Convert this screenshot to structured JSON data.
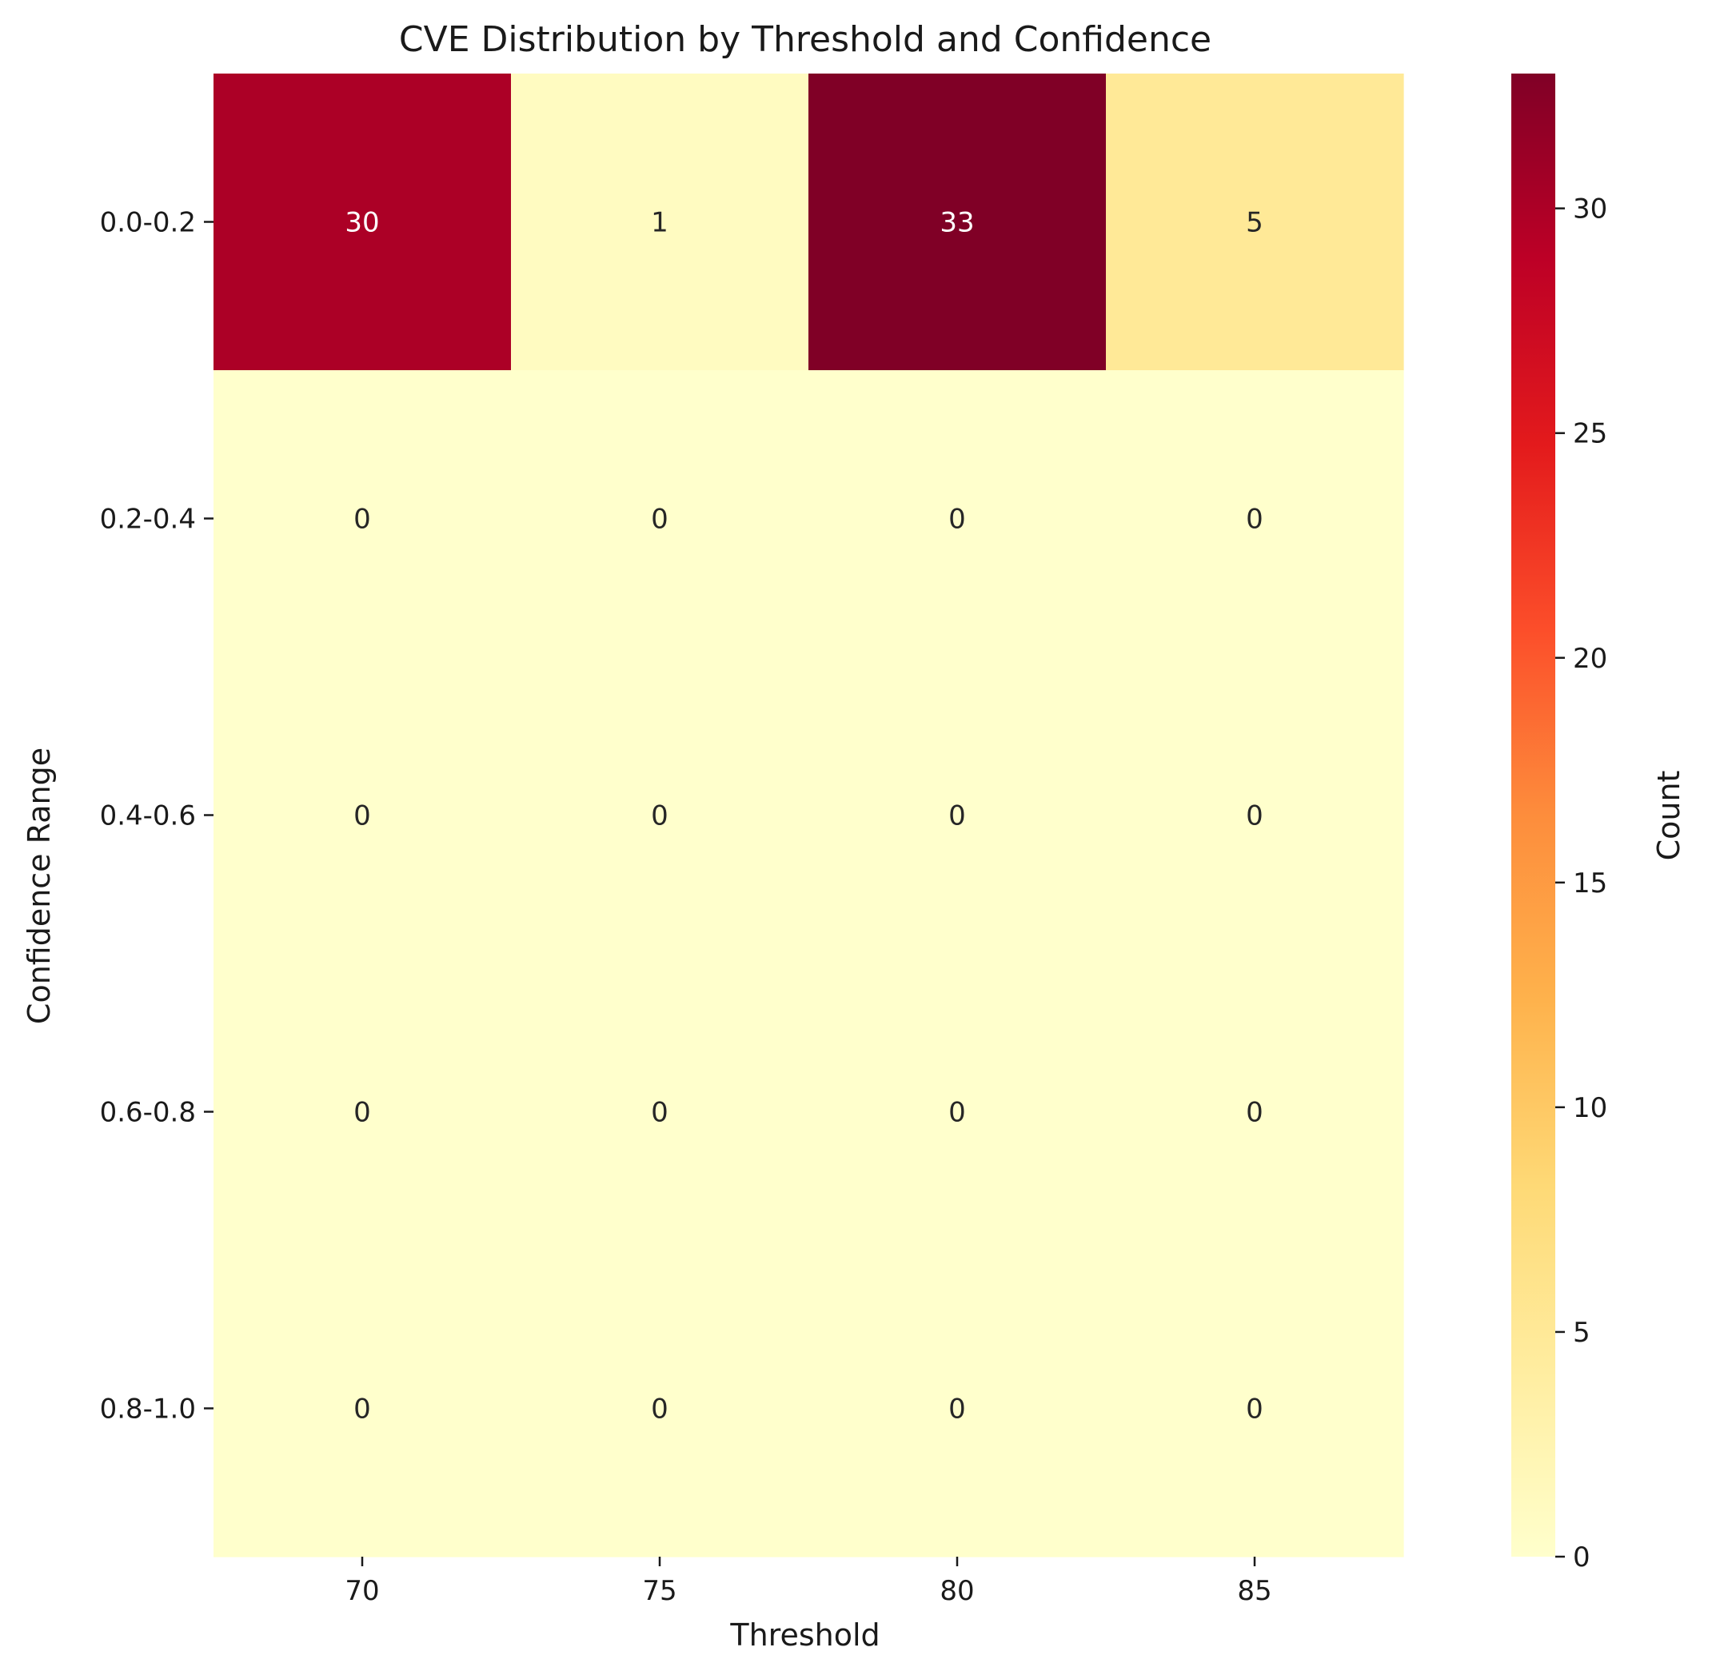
{
  "chart_data": {
    "type": "heatmap",
    "title": "CVE Distribution by Threshold and Confidence",
    "xlabel": "Threshold",
    "ylabel": "Confidence Range",
    "x_categories": [
      "70",
      "75",
      "80",
      "85"
    ],
    "y_categories": [
      "0.0-0.2",
      "0.2-0.4",
      "0.4-0.6",
      "0.6-0.8",
      "0.8-1.0"
    ],
    "values": [
      [
        30,
        1,
        33,
        5
      ],
      [
        0,
        0,
        0,
        0
      ],
      [
        0,
        0,
        0,
        0
      ],
      [
        0,
        0,
        0,
        0
      ],
      [
        0,
        0,
        0,
        0
      ]
    ],
    "colorbar": {
      "label": "Count",
      "range": [
        0,
        33
      ],
      "ticks": [
        0,
        5,
        10,
        15,
        20,
        25,
        30
      ],
      "colormap": "YlOrRd"
    },
    "annotations": true,
    "grid": false
  }
}
